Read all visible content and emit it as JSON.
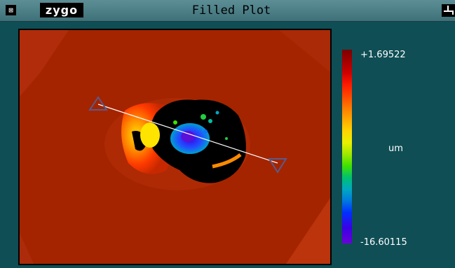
{
  "window": {
    "title": "Filled Plot",
    "logo": "zygo",
    "close_glyph": "⊠"
  },
  "scale": {
    "max_label": "+1.69522",
    "min_label": "-16.60115",
    "unit_label": "um"
  },
  "profile_line": {
    "start_marker_icon": "triangle-up-icon",
    "end_marker_icon": "triangle-down-icon"
  },
  "colors": {
    "titlebar": "#5d8e96",
    "background": "#0f4e55",
    "surface": "#a42400"
  }
}
